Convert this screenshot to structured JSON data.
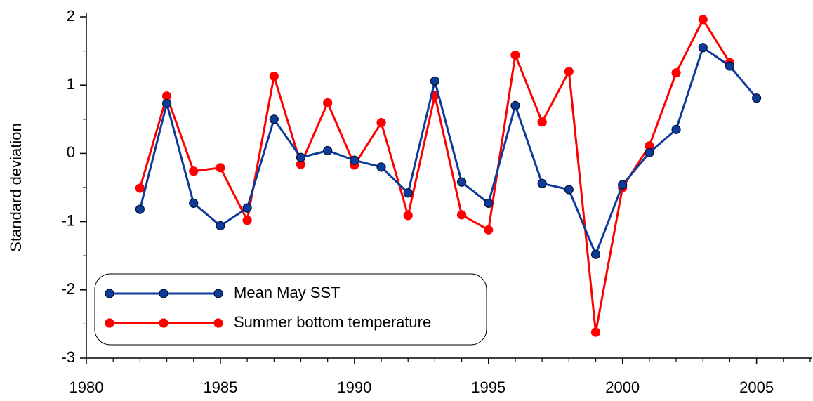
{
  "chart_data": {
    "type": "line",
    "y_label": "Standard deviation",
    "x": [
      1982,
      1983,
      1984,
      1985,
      1986,
      1987,
      1988,
      1989,
      1990,
      1991,
      1992,
      1993,
      1994,
      1995,
      1996,
      1997,
      1998,
      1999,
      2000,
      2001,
      2002,
      2003,
      2004,
      2005
    ],
    "series": [
      {
        "name": "Mean May SST",
        "color": "#0d3b99",
        "values": [
          -0.82,
          0.73,
          -0.73,
          -1.06,
          -0.8,
          0.5,
          -0.06,
          0.04,
          -0.1,
          -0.2,
          -0.58,
          1.06,
          -0.42,
          -0.73,
          0.7,
          -0.44,
          -0.53,
          -1.48,
          -0.46,
          0.01,
          0.35,
          1.55,
          1.28,
          0.81
        ]
      },
      {
        "name": "Summer bottom temperature",
        "color": "#ff0000",
        "values": [
          -0.51,
          0.84,
          -0.26,
          -0.21,
          -0.98,
          1.13,
          -0.16,
          0.74,
          -0.17,
          0.45,
          -0.91,
          0.85,
          -0.9,
          -1.12,
          1.44,
          0.46,
          1.2,
          -2.62,
          -0.5,
          0.11,
          1.18,
          1.96,
          1.33,
          null
        ]
      }
    ],
    "xlim": [
      1980,
      2007
    ],
    "xticks": [
      1980,
      1985,
      1990,
      1995,
      2000,
      2005
    ],
    "ylim": [
      -3,
      2
    ],
    "yticks": [
      -3,
      -2,
      -1,
      0,
      1,
      2
    ],
    "grid": false,
    "legend": "lower left"
  }
}
